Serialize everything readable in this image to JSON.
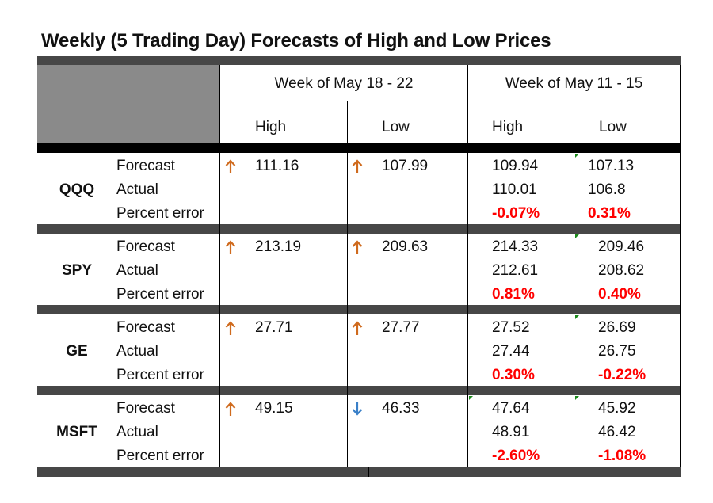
{
  "title": "Weekly (5 Trading Day) Forecasts of High and Low Prices",
  "headers": {
    "week1": "Week of May 18 - 22",
    "week2": "Week of May 11 - 15",
    "high": "High",
    "low": "Low"
  },
  "row_labels": {
    "forecast": "Forecast",
    "actual": "Actual",
    "percent_error": "Percent error"
  },
  "colors": {
    "up_arrow": "#cf6a1d",
    "down_arrow": "#3a80c8",
    "error_text": "#ff0000",
    "header_fill": "#8a8a8a"
  },
  "stocks": [
    {
      "ticker": "QQQ",
      "w1_high": {
        "value": "111.16",
        "arrow": "up-arrow-icon"
      },
      "w1_low": {
        "value": "107.99",
        "arrow": "up-arrow-icon"
      },
      "w2_high": {
        "forecast": "109.94",
        "actual": "110.01",
        "error": "-0.07%"
      },
      "w2_low": {
        "forecast": "107.13",
        "actual": "106.8",
        "error": "0.31%"
      }
    },
    {
      "ticker": "SPY",
      "w1_high": {
        "value": "213.19",
        "arrow": "up-arrow-icon"
      },
      "w1_low": {
        "value": "209.63",
        "arrow": "up-arrow-icon"
      },
      "w2_high": {
        "forecast": "214.33",
        "actual": "212.61",
        "error": "0.81%"
      },
      "w2_low": {
        "forecast": "209.46",
        "actual": "208.62",
        "error": "0.40%"
      }
    },
    {
      "ticker": "GE",
      "w1_high": {
        "value": "27.71",
        "arrow": "up-arrow-icon"
      },
      "w1_low": {
        "value": "27.77",
        "arrow": "up-arrow-icon"
      },
      "w2_high": {
        "forecast": "27.52",
        "actual": "27.44",
        "error": "0.30%"
      },
      "w2_low": {
        "forecast": "26.69",
        "actual": "26.75",
        "error": "-0.22%"
      }
    },
    {
      "ticker": "MSFT",
      "w1_high": {
        "value": "49.15",
        "arrow": "up-arrow-icon"
      },
      "w1_low": {
        "value": "46.33",
        "arrow": "down-arrow-icon"
      },
      "w2_high": {
        "forecast": "47.64",
        "actual": "48.91",
        "error": "-2.60%"
      },
      "w2_low": {
        "forecast": "45.92",
        "actual": "46.42",
        "error": "-1.08%"
      }
    }
  ]
}
